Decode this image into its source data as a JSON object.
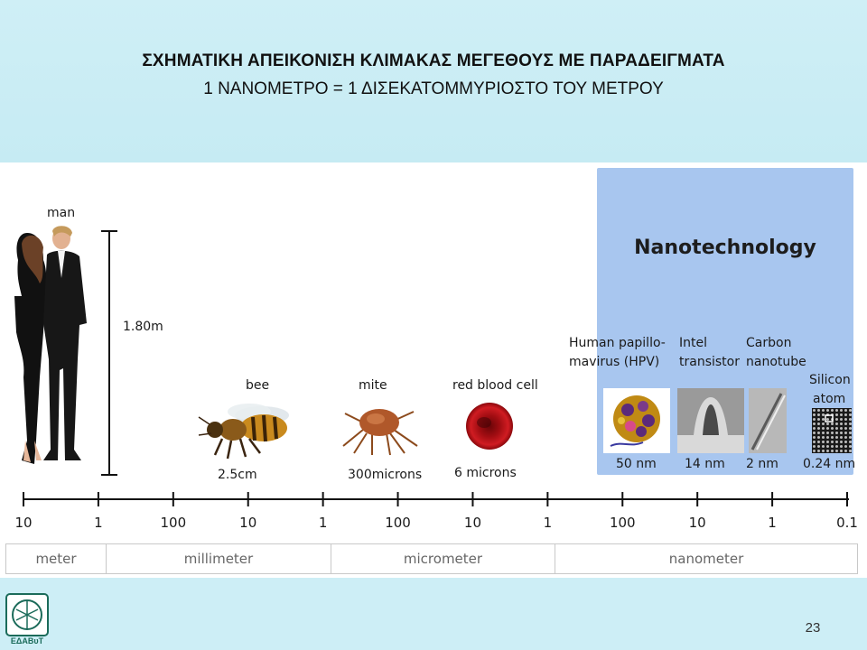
{
  "slide": {
    "title_line1": "ΣΧΗΜΑΤΙΚΗ ΑΠΕΙΚΟΝΙΣΗ ΚΛΙΜΑΚΑΣ ΜΕΓΕΘΟΥΣ ΜΕ ΠΑΡΑΔΕΙΓΜΑΤΑ",
    "title_line2": "1 ΝΑΝΟΜΕΤΡΟ  =  1 ΔΙΣΕΚΑΤΟΜΜΥΡΙΟΣΤΟ ΤΟΥ ΜΕΤΡΟΥ",
    "page_number": "23",
    "logo_text": "ΕΔΑΒυΤ"
  },
  "figure": {
    "nano_panel_title": "Nanotechnology",
    "examples": [
      {
        "name": "man",
        "size": "1.80m",
        "icon": "couple-photo"
      },
      {
        "name": "bee",
        "size": "2.5cm",
        "icon": "bee-photo"
      },
      {
        "name": "mite",
        "size": "300microns",
        "icon": "mite-photo"
      },
      {
        "name": "red blood cell",
        "size": "6 microns",
        "icon": "red-blood-cell-photo"
      },
      {
        "name_lines": [
          "Human papillo-",
          "mavirus (HPV)"
        ],
        "size": "50 nm",
        "icon": "hpv-virus-image"
      },
      {
        "name_lines": [
          "Intel",
          "transistor"
        ],
        "size": "14 nm",
        "icon": "transistor-micrograph"
      },
      {
        "name_lines": [
          "Carbon",
          "nanotube"
        ],
        "size": "2 nm",
        "icon": "nanotube-micrograph"
      },
      {
        "name_lines": [
          "Silicon",
          "atom"
        ],
        "size": "0.24 nm",
        "icon": "silicon-lattice-image"
      }
    ],
    "scale_ticks": [
      "10",
      "1",
      "100",
      "10",
      "1",
      "100",
      "10",
      "1",
      "100",
      "10",
      "1",
      "0.1"
    ],
    "units": [
      "meter",
      "millimeter",
      "micrometer",
      "nanometer"
    ]
  },
  "colors": {
    "background": "#cdeef6",
    "nano_panel": "#a8c6ef",
    "blood_cell": "#c0161c",
    "logo": "#1b6b5a"
  }
}
